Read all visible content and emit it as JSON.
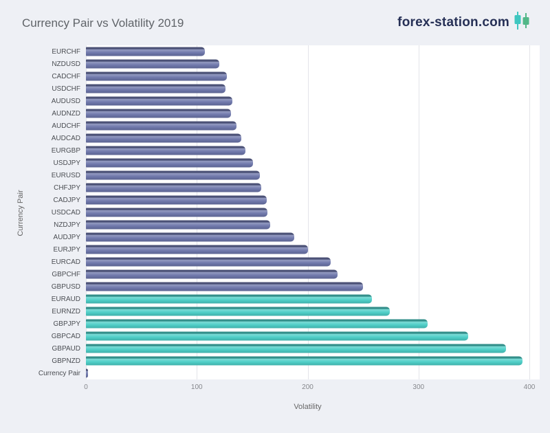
{
  "page": {
    "background": "#eef0f5"
  },
  "header": {
    "title": "Currency Pair vs Volatility 2019"
  },
  "logo": {
    "text": "forex-station.com",
    "candle1_icon": "candlestick-teal",
    "candle2_icon": "candlestick-green"
  },
  "palette": {
    "slate": "#6b74a9",
    "teal": "#49cdc6",
    "logo_text": "#263056",
    "candle1": "#3ec6c0",
    "candle2": "#52b788",
    "plot_background": "#ffffff",
    "gridline": "#e3e4e9"
  },
  "chart_data": {
    "type": "bar",
    "orientation": "horizontal",
    "title": "Currency Pair vs Volatility 2019",
    "xlabel": "Volatility",
    "ylabel": "Currency Pair",
    "xlim": [
      0,
      400
    ],
    "xticks": [
      0,
      100,
      200,
      300,
      400
    ],
    "grid": true,
    "legend": false,
    "bars": [
      {
        "label": "EURCHF",
        "value": 107,
        "color": "slate"
      },
      {
        "label": "NZDUSD",
        "value": 120,
        "color": "slate"
      },
      {
        "label": "CADCHF",
        "value": 127,
        "color": "slate"
      },
      {
        "label": "USDCHF",
        "value": 126,
        "color": "slate"
      },
      {
        "label": "AUDUSD",
        "value": 132,
        "color": "slate"
      },
      {
        "label": "AUDNZD",
        "value": 131,
        "color": "slate"
      },
      {
        "label": "AUDCHF",
        "value": 136,
        "color": "slate"
      },
      {
        "label": "AUDCAD",
        "value": 140,
        "color": "slate"
      },
      {
        "label": "EURGBP",
        "value": 144,
        "color": "slate"
      },
      {
        "label": "USDJPY",
        "value": 151,
        "color": "slate"
      },
      {
        "label": "EURUSD",
        "value": 157,
        "color": "slate"
      },
      {
        "label": "CHFJPY",
        "value": 158,
        "color": "slate"
      },
      {
        "label": "CADJPY",
        "value": 163,
        "color": "slate"
      },
      {
        "label": "USDCAD",
        "value": 164,
        "color": "slate"
      },
      {
        "label": "NZDJPY",
        "value": 166,
        "color": "slate"
      },
      {
        "label": "AUDJPY",
        "value": 188,
        "color": "slate"
      },
      {
        "label": "EURJPY",
        "value": 200,
        "color": "slate"
      },
      {
        "label": "EURCAD",
        "value": 221,
        "color": "slate"
      },
      {
        "label": "GBPCHF",
        "value": 227,
        "color": "slate"
      },
      {
        "label": "GBPUSD",
        "value": 250,
        "color": "slate"
      },
      {
        "label": "EURAUD",
        "value": 258,
        "color": "teal"
      },
      {
        "label": "EURNZD",
        "value": 274,
        "color": "teal"
      },
      {
        "label": "GBPJPY",
        "value": 308,
        "color": "teal"
      },
      {
        "label": "GBPCAD",
        "value": 345,
        "color": "teal"
      },
      {
        "label": "GBPAUD",
        "value": 379,
        "color": "teal"
      },
      {
        "label": "GBPNZD",
        "value": 394,
        "color": "teal"
      },
      {
        "label": "Currency Pair",
        "value": 2,
        "color": "slate"
      }
    ]
  }
}
